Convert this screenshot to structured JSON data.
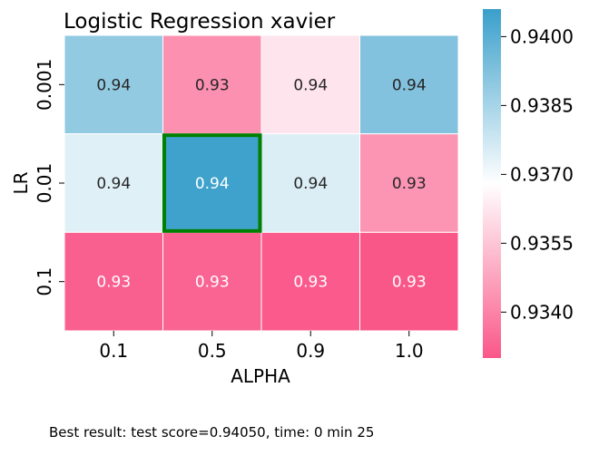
{
  "chart_data": {
    "type": "heatmap",
    "title": "Logistic Regression xavier",
    "xlabel": "ALPHA",
    "ylabel": "LR",
    "x_categories": [
      "0.1",
      "0.5",
      "0.9",
      "1.0"
    ],
    "y_categories": [
      "0.001",
      "0.01",
      "0.1"
    ],
    "values": [
      [
        0.9389,
        0.9343,
        0.9362,
        0.9392
      ],
      [
        0.9374,
        0.9405,
        0.9375,
        0.9344
      ],
      [
        0.9332,
        0.9333,
        0.9331,
        0.9325
      ]
    ],
    "cell_labels": [
      [
        "0.94",
        "0.93",
        "0.94",
        "0.94"
      ],
      [
        "0.94",
        "0.94",
        "0.94",
        "0.93"
      ],
      [
        "0.93",
        "0.93",
        "0.93",
        "0.93"
      ]
    ],
    "highlight_cell": {
      "row": 1,
      "col": 1,
      "color": "#007f00"
    },
    "colorbar": {
      "vmin": 0.933,
      "vmax": 0.9406,
      "ticks": [
        0.934,
        0.9355,
        0.937,
        0.9385,
        0.94
      ],
      "tick_labels": [
        "0.9340",
        "0.9355",
        "0.9370",
        "0.9385",
        "0.9400"
      ]
    },
    "colormap": [
      "#fa5789",
      "#ffffff",
      "#3a9fcb"
    ],
    "grid": false,
    "legend": "colorbar-right"
  },
  "footer": {
    "text": "Best result: test score=0.94050, time: 0 min 25"
  }
}
